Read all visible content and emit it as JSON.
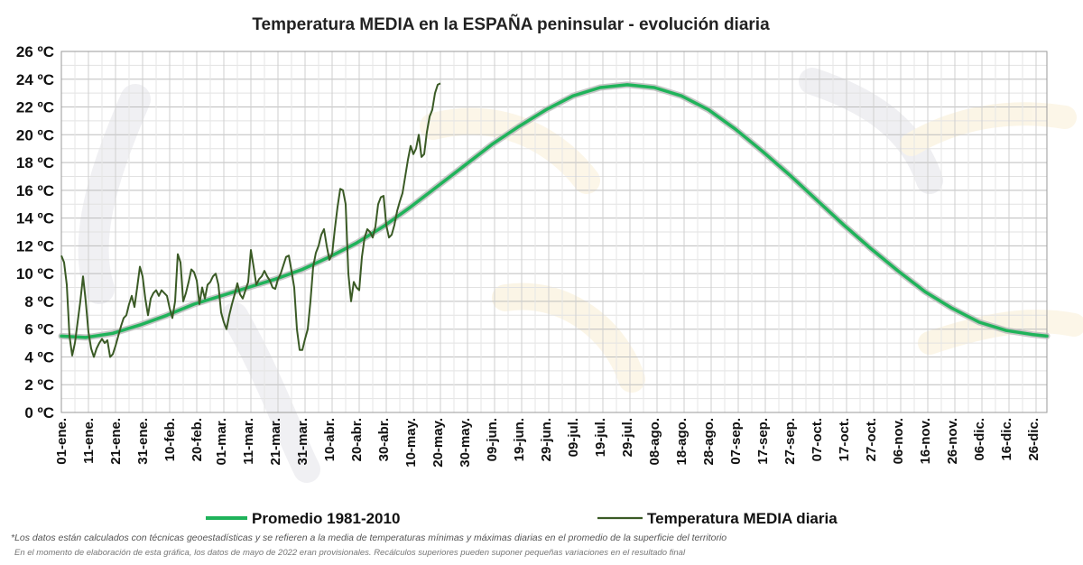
{
  "chart_data": {
    "type": "line",
    "title": "Temperatura MEDIA en la ESPAÑA peninsular - evolución diaria",
    "xlabel": "",
    "ylabel": "",
    "ylim": [
      0,
      26
    ],
    "xlim_days": [
      1,
      365
    ],
    "y_ticks": [
      0,
      2,
      4,
      6,
      8,
      10,
      12,
      14,
      16,
      18,
      20,
      22,
      24,
      26
    ],
    "y_tick_labels": [
      "0 ºC",
      "2 ºC",
      "4 ºC",
      "6 ºC",
      "8 ºC",
      "10 ºC",
      "12 ºC",
      "14 ºC",
      "16 ºC",
      "18 ºC",
      "20 ºC",
      "22 ºC",
      "24 ºC",
      "26 ºC"
    ],
    "x_tick_days": [
      1,
      11,
      21,
      31,
      41,
      51,
      60,
      70,
      80,
      90,
      100,
      110,
      120,
      130,
      140,
      150,
      160,
      170,
      180,
      190,
      200,
      210,
      220,
      230,
      240,
      250,
      260,
      270,
      280,
      290,
      300,
      310,
      320,
      330,
      340,
      350,
      360
    ],
    "x_tick_labels": [
      "01-ene.",
      "11-ene.",
      "21-ene.",
      "31-ene.",
      "10-feb.",
      "20-feb.",
      "01-mar.",
      "11-mar.",
      "21-mar.",
      "31-mar.",
      "10-abr.",
      "20-abr.",
      "30-abr.",
      "10-may.",
      "20-may.",
      "30-may.",
      "09-jun.",
      "19-jun.",
      "29-jun.",
      "09-jul.",
      "19-jul.",
      "29-jul.",
      "08-ago.",
      "18-ago.",
      "28-ago.",
      "07-sep.",
      "17-sep.",
      "27-sep.",
      "07-oct.",
      "17-oct.",
      "27-oct.",
      "06-nov.",
      "16-nov.",
      "26-nov.",
      "06-dic.",
      "16-dic.",
      "26-dic."
    ],
    "grid": true,
    "legend_position": "bottom",
    "series": [
      {
        "name": "Promedio 1981-2010",
        "color": "#1fb35a",
        "x": [
          1,
          10,
          20,
          30,
          40,
          50,
          60,
          70,
          80,
          90,
          100,
          110,
          120,
          130,
          140,
          150,
          160,
          170,
          180,
          190,
          200,
          210,
          220,
          230,
          240,
          250,
          260,
          270,
          280,
          290,
          300,
          310,
          320,
          330,
          340,
          350,
          360,
          365
        ],
        "values": [
          5.5,
          5.4,
          5.7,
          6.3,
          7.0,
          7.8,
          8.4,
          9.0,
          9.6,
          10.3,
          11.2,
          12.2,
          13.4,
          14.8,
          16.3,
          17.8,
          19.3,
          20.6,
          21.8,
          22.8,
          23.4,
          23.6,
          23.4,
          22.8,
          21.8,
          20.4,
          18.8,
          17.1,
          15.3,
          13.5,
          11.8,
          10.2,
          8.7,
          7.5,
          6.5,
          5.9,
          5.6,
          5.5
        ]
      },
      {
        "name": "Temperatura MEDIA diaria",
        "color": "#3a5a25",
        "x": [
          1,
          2,
          3,
          4,
          5,
          6,
          7,
          8,
          9,
          10,
          11,
          12,
          13,
          14,
          15,
          16,
          17,
          18,
          19,
          20,
          21,
          22,
          23,
          24,
          25,
          26,
          27,
          28,
          29,
          30,
          31,
          32,
          33,
          34,
          35,
          36,
          37,
          38,
          39,
          40,
          41,
          42,
          43,
          44,
          45,
          46,
          47,
          48,
          49,
          50,
          51,
          52,
          53,
          54,
          55,
          56,
          57,
          58,
          59,
          60,
          61,
          62,
          63,
          64,
          65,
          66,
          67,
          68,
          69,
          70,
          71,
          72,
          73,
          74,
          75,
          76,
          77,
          78,
          79,
          80,
          81,
          82,
          83,
          84,
          85,
          86,
          87,
          88,
          89,
          90,
          91,
          92,
          93,
          94,
          95,
          96,
          97,
          98,
          99,
          100,
          101,
          102,
          103,
          104,
          105,
          106,
          107,
          108,
          109,
          110,
          111,
          112,
          113,
          114,
          115,
          116,
          117,
          118,
          119,
          120,
          121,
          122,
          123,
          124,
          125,
          126,
          127,
          128,
          129,
          130,
          131,
          132,
          133,
          134,
          135,
          136,
          137,
          138,
          139,
          140,
          141
        ],
        "values": [
          11.3,
          10.8,
          9.2,
          5.5,
          4.1,
          5.0,
          6.5,
          8.0,
          9.8,
          8.0,
          5.8,
          4.6,
          4.0,
          4.6,
          5.0,
          5.3,
          5.0,
          5.2,
          4.0,
          4.2,
          4.8,
          5.5,
          6.2,
          6.8,
          7.0,
          7.8,
          8.4,
          7.6,
          9.0,
          10.5,
          9.8,
          8.2,
          7.0,
          8.2,
          8.6,
          8.8,
          8.4,
          8.8,
          8.6,
          8.4,
          7.5,
          6.8,
          8.0,
          11.4,
          10.8,
          8.0,
          8.6,
          9.4,
          10.3,
          10.1,
          9.5,
          7.8,
          9.0,
          8.2,
          9.2,
          9.4,
          9.8,
          10.0,
          9.2,
          7.2,
          6.5,
          6.0,
          7.0,
          7.8,
          8.5,
          9.3,
          8.5,
          8.2,
          8.8,
          9.4,
          11.7,
          10.5,
          9.2,
          9.6,
          9.8,
          10.2,
          9.8,
          9.5,
          9.0,
          8.9,
          9.6,
          10.0,
          10.6,
          11.2,
          11.3,
          10.2,
          9.0,
          6.0,
          4.5,
          4.5,
          5.3,
          6.0,
          8.0,
          10.5,
          11.5,
          12.0,
          12.8,
          13.2,
          12.0,
          11.0,
          11.4,
          13.2,
          14.8,
          16.1,
          16.0,
          15.0,
          10.0,
          8.0,
          9.4,
          9.0,
          8.8,
          11.2,
          12.6,
          13.2,
          13.0,
          12.6,
          13.4,
          15.0,
          15.5,
          15.6,
          13.5,
          12.6,
          12.8,
          13.5,
          14.5,
          15.2,
          15.8,
          17.0,
          18.2,
          19.2,
          18.6,
          19.0,
          20.0,
          18.4,
          18.6,
          20.2,
          21.3,
          21.8,
          23.0,
          23.6,
          23.7
        ]
      }
    ]
  },
  "footnotes": {
    "line1": "*Los datos están calculados con técnicas geoestadísticas y se refieren a la media de temperaturas mínimas y máximas diarias en el promedio de la superficie del territorio",
    "line2": "En el momento de elaboración de esta gráfica, los datos de mayo de 2022 eran provisionales. Recálculos superiores pueden suponer pequeñas variaciones en el resultado final"
  }
}
